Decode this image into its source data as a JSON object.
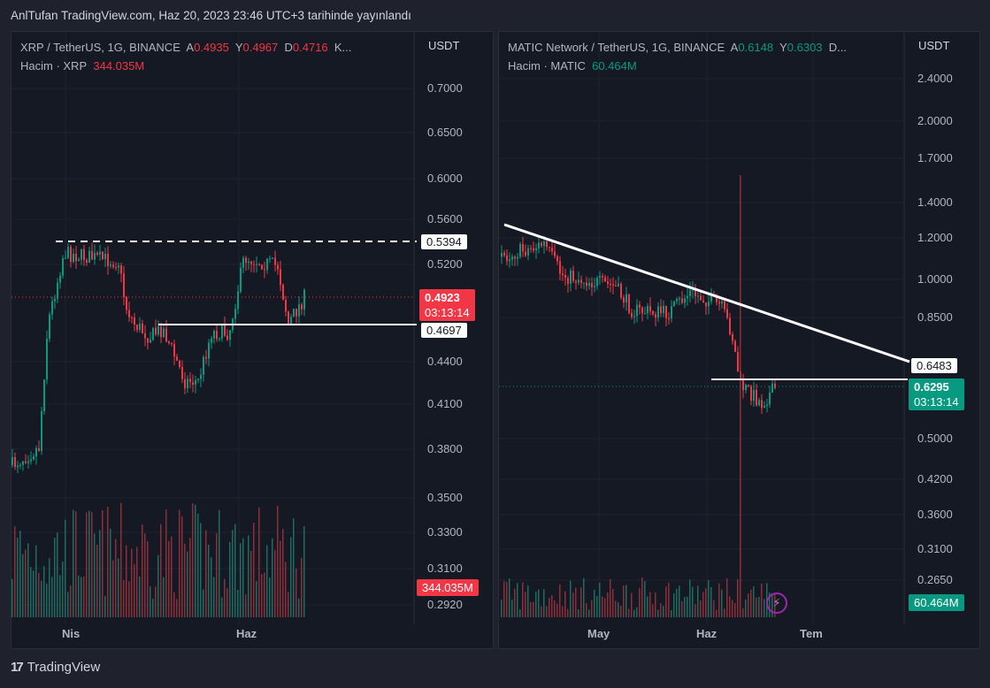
{
  "header": {
    "published": "AnlTufan TradingView.com, Haz 20, 2023 23:46 UTC+3 tarihinde yayınlandı"
  },
  "colors": {
    "up": "#089981",
    "down": "#f23645",
    "line": "#ffffff"
  },
  "left": {
    "symbol": "XRP / TetherUS, 1G, BINANCE",
    "o_label": "A",
    "o": "0.4935",
    "h_label": "Y",
    "h": "0.4967",
    "l_label": "D",
    "l": "0.4716",
    "c_trunc": "K...",
    "volume_label": "Hacim · XRP",
    "volume": "344.035M",
    "currency": "USDT",
    "ticks": [
      "0.7000",
      "0.6500",
      "0.6000",
      "0.5600",
      "0.5200",
      "0.4400",
      "0.4100",
      "0.3800",
      "0.3500",
      "0.3300",
      "0.3100",
      "0.2920"
    ],
    "resistance": "0.5394",
    "support": "0.4697",
    "price": "0.4923",
    "countdown": "03:13:14",
    "volume_tag": "344.035M",
    "xlabels": [
      "Nis",
      "Haz"
    ]
  },
  "right": {
    "symbol": "MATIC Network / TetherUS, 1G, BINANCE",
    "o_label": "A",
    "o": "0.6148",
    "h_label": "Y",
    "h": "0.6303",
    "rest": "D...",
    "volume_label": "Hacim · MATIC",
    "volume": "60.464M",
    "currency": "USDT",
    "ticks": [
      "2.4000",
      "2.0000",
      "1.7000",
      "1.4000",
      "1.2000",
      "1.0000",
      "0.8500",
      "0.5000",
      "0.4200",
      "0.3600",
      "0.3100",
      "0.2650"
    ],
    "support": "0.6483",
    "price": "0.6295",
    "countdown": "03:13:14",
    "volume_tag": "60.464M",
    "xlabels": [
      "May",
      "Haz",
      "Tem"
    ]
  },
  "footer": {
    "brand": "TradingView"
  }
}
